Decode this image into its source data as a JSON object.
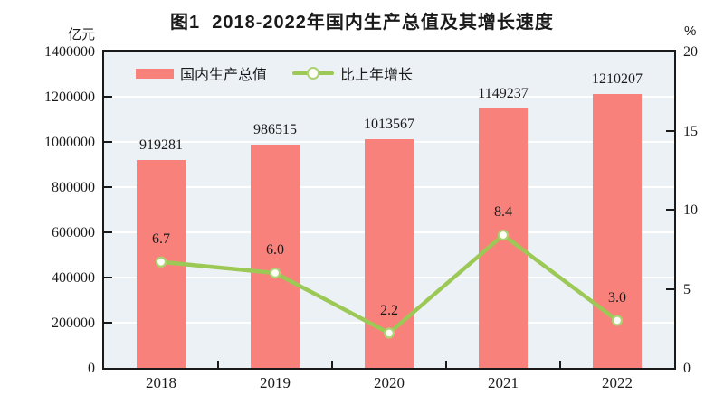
{
  "title": "图1  2018-2022年国内生产总值及其增长速度",
  "left_axis": {
    "unit": "亿元",
    "tick_labels": [
      "1400000",
      "1200000",
      "1000000",
      "800000",
      "600000",
      "400000",
      "200000",
      "0"
    ]
  },
  "right_axis": {
    "unit": "%",
    "tick_labels": [
      "20",
      "15",
      "10",
      "5",
      "0"
    ]
  },
  "legend": [
    {
      "label": "国内生产总值",
      "type": "bar"
    },
    {
      "label": "比上年增长",
      "type": "line"
    }
  ],
  "colors": {
    "bar": "#f8827b",
    "line": "#9cc855",
    "marker_fill": "#fffef8",
    "marker_stroke": "#abd172",
    "plot_bg": "#ecf1f6",
    "grid": "#ffffff",
    "axis": "#1a1a1a",
    "text": "#1a1a1a"
  },
  "chart_data": {
    "type": "bar+line",
    "title": "图1 2018-2022年国内生产总值及其增长速度",
    "categories": [
      "2018",
      "2019",
      "2020",
      "2021",
      "2022"
    ],
    "series": [
      {
        "name": "国内生产总值",
        "type": "bar",
        "axis": "left",
        "unit": "亿元",
        "values": [
          919281,
          986515,
          1013567,
          1149237,
          1210207
        ]
      },
      {
        "name": "比上年增长",
        "type": "line",
        "axis": "right",
        "unit": "%",
        "values": [
          6.7,
          6.0,
          2.2,
          8.4,
          3.0
        ]
      }
    ],
    "left_ylabel": "亿元",
    "right_ylabel": "%",
    "left_ylim": [
      0,
      1400000
    ],
    "right_ylim": [
      0,
      20
    ],
    "left_tick_step": 200000,
    "right_tick_step": 5,
    "grid": true,
    "legend_position": "top-left-inside"
  }
}
